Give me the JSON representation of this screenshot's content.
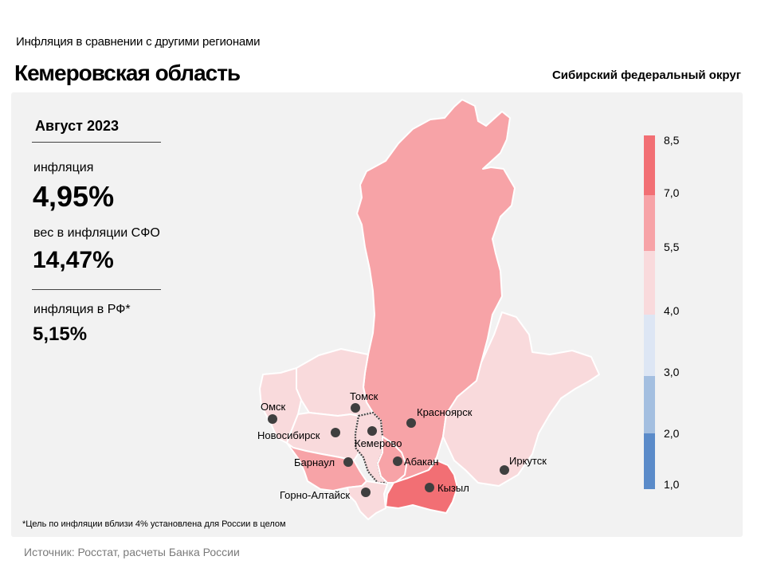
{
  "header": {
    "subtitle": "Инфляция  в сравнении  с другими  регионами",
    "title": "Кемеровская область",
    "district": "Сибирский федеральный округ"
  },
  "stats": {
    "period": "Август 2023",
    "inflation_label": "инфляция",
    "inflation_value": "4,95%",
    "weight_label": "вес в инфляции  СФО",
    "weight_value": "14,47%",
    "rf_label": "инфляция  в РФ*",
    "rf_value": "5,15%"
  },
  "footnote": "*Цель по инфляции вблизи 4% установлена для России в целом",
  "source": "Источник: Росстат, расчеты Банка России",
  "legend": {
    "ticks": [
      "8,5",
      "7,0",
      "5,5",
      "4,0",
      "3,0",
      "2,0",
      "1,0"
    ],
    "colors": [
      "#f26f74",
      "#f7a3a7",
      "#f9dadc",
      "#dde6f4",
      "#a4bfe0",
      "#5b8bc9"
    ]
  },
  "cities": [
    "Омск",
    "Томск",
    "Красноярск",
    "Новосибирск",
    "Кемерово",
    "Барнаул",
    "Абакан",
    "Иркутск",
    "Горно-Алтайск",
    "Кызыл"
  ],
  "regions": {
    "krasnoyarsk": {
      "name": "Красноярский край",
      "color": "#f7a3a7"
    },
    "irkutsk": {
      "name": "Иркутская область",
      "color": "#f9dadc"
    },
    "tomsk": {
      "name": "Томская область",
      "color": "#f9dadc"
    },
    "omsk": {
      "name": "Омская область",
      "color": "#f9dadc"
    },
    "novosibirsk": {
      "name": "Новосибирская область",
      "color": "#f9dadc"
    },
    "kemerovo": {
      "name": "Кемеровская область",
      "color": "#f9dadc"
    },
    "altai_krai": {
      "name": "Алтайский край",
      "color": "#f7a3a7"
    },
    "altai_rep": {
      "name": "Республика Алтай",
      "color": "#f9dadc"
    },
    "khakassia": {
      "name": "Республика Хакасия",
      "color": "#f7a3a7"
    },
    "tyva": {
      "name": "Республика Тыва",
      "color": "#f26f74"
    }
  }
}
